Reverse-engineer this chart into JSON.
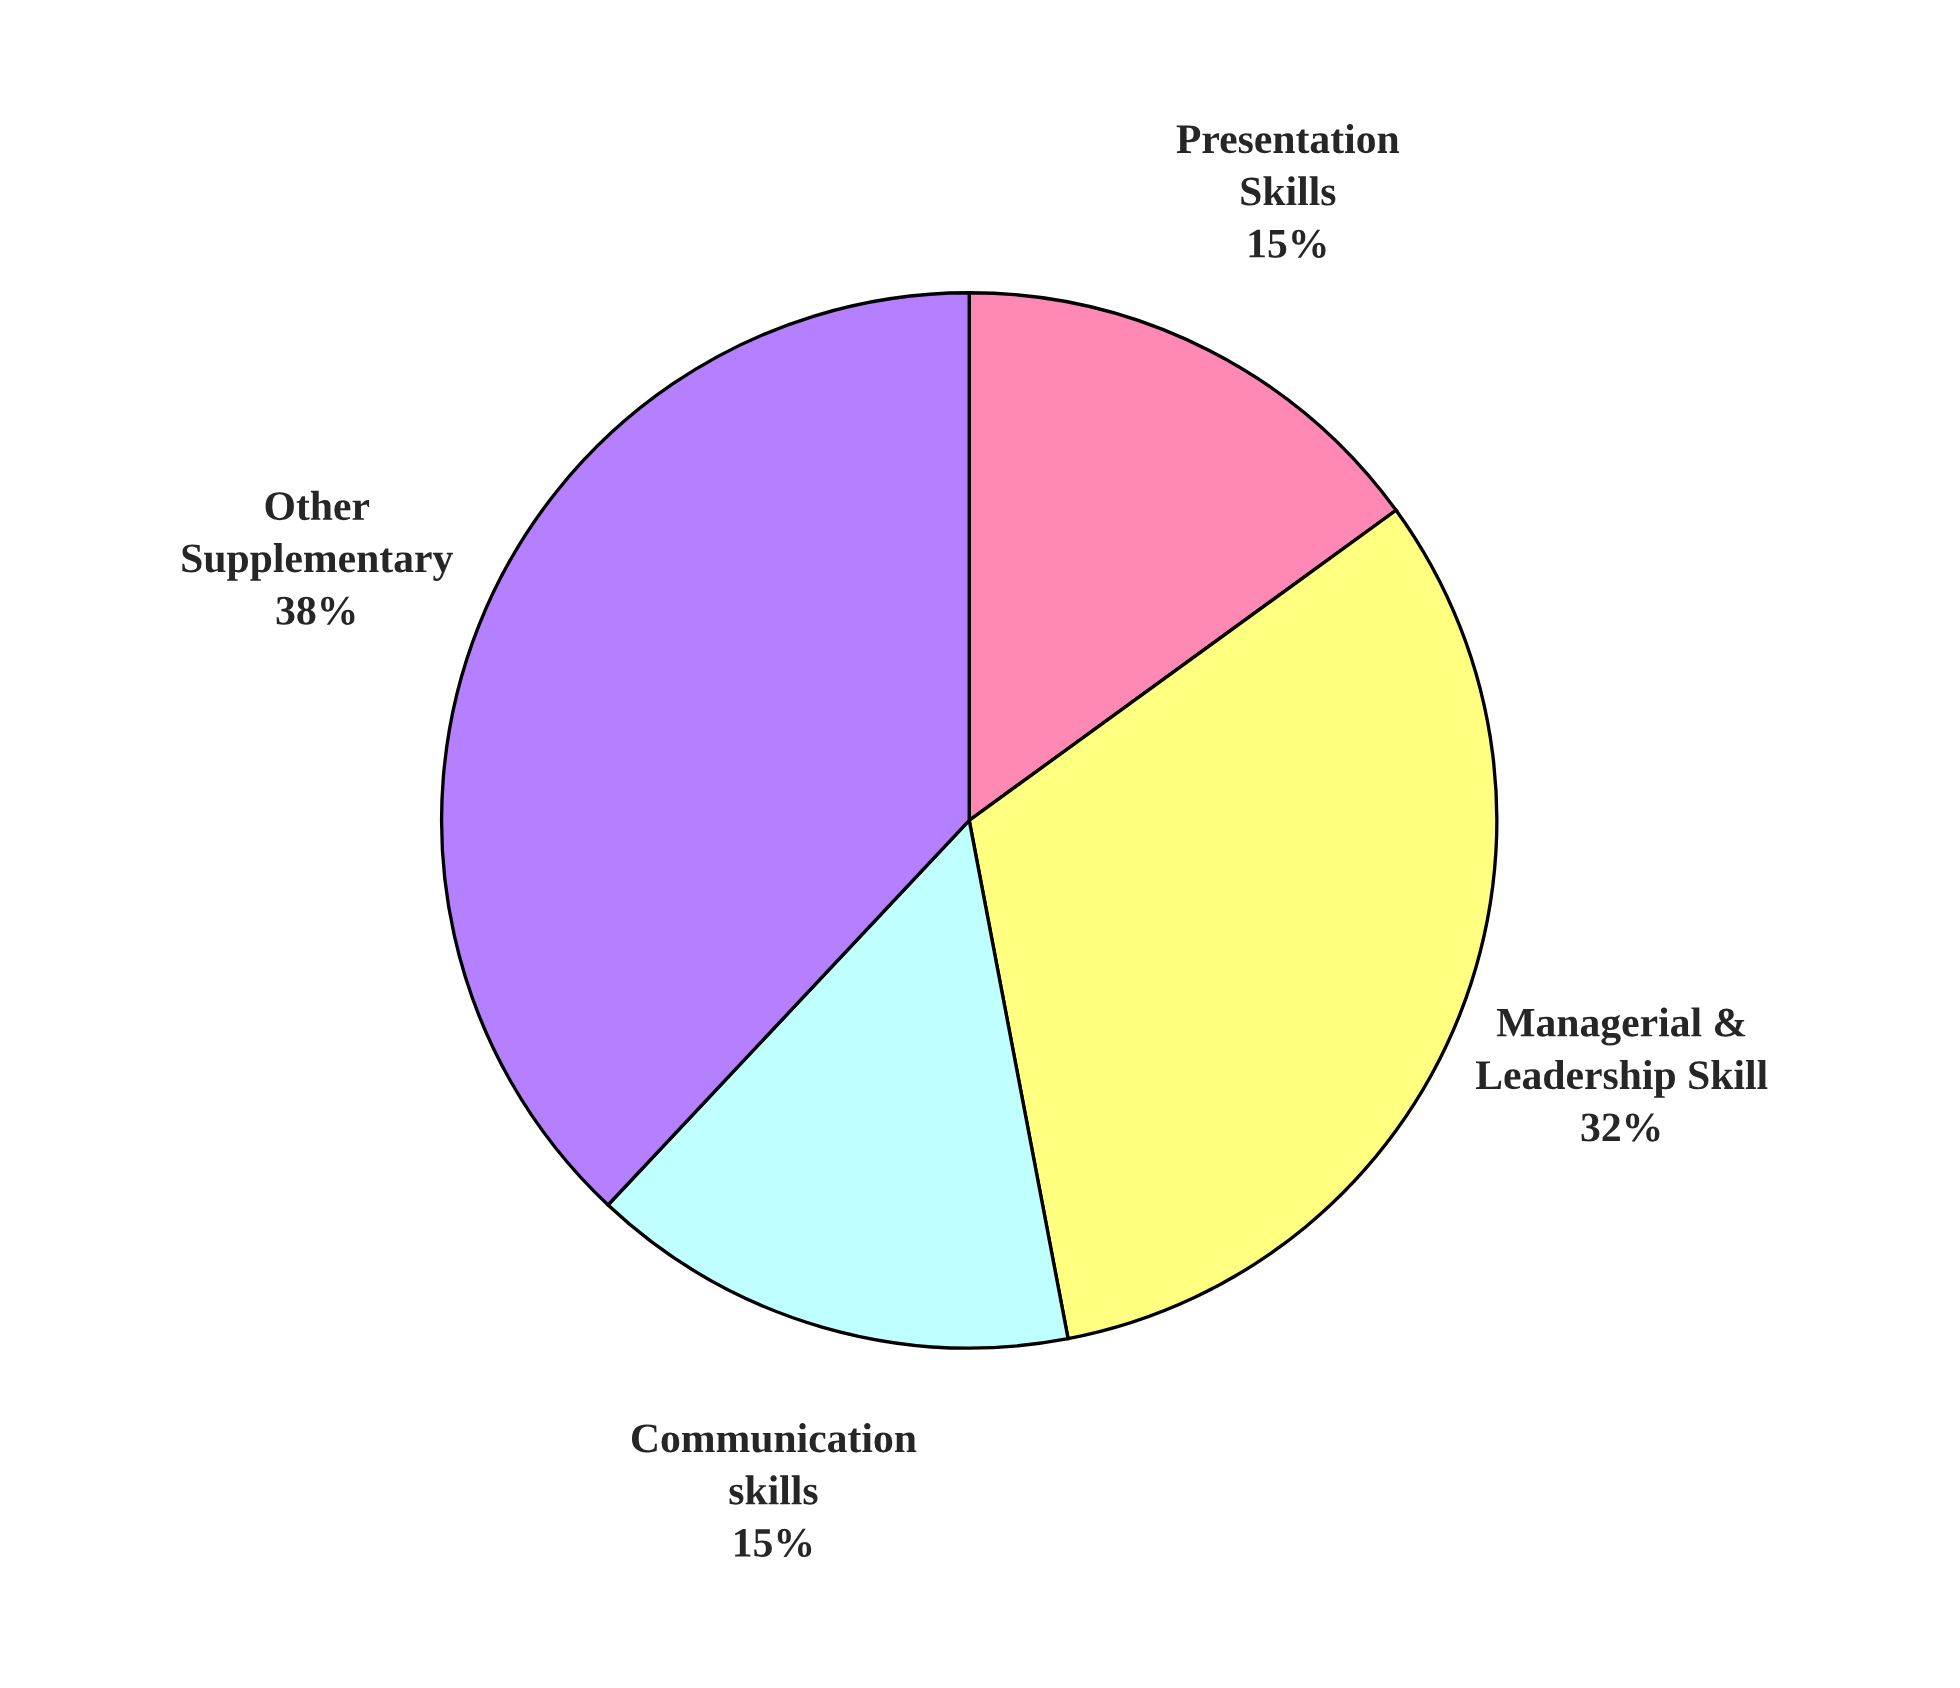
{
  "chart_data": {
    "type": "pie",
    "categories": [
      "Presentation\nSkills",
      "Managerial &\nLeadership Skill",
      "Communication\nskills",
      "Other\nSupplementary"
    ],
    "values": [
      15,
      32,
      15,
      38
    ],
    "colors": [
      "#ff88b4",
      "#ffff80",
      "#c0ffff",
      "#b580ff"
    ],
    "value_labels": [
      "15%",
      "32%",
      "15%",
      "38%"
    ]
  }
}
